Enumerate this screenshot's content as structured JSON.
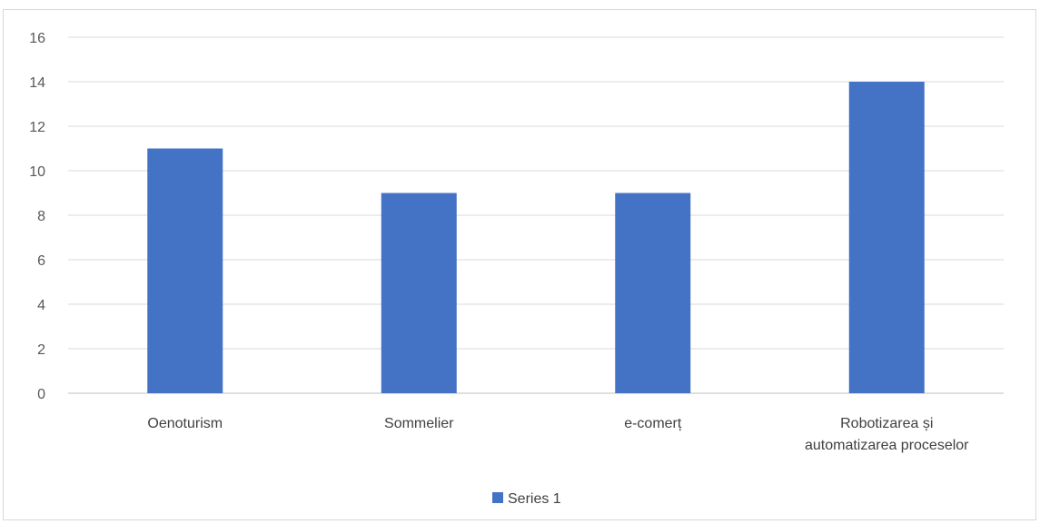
{
  "chart_data": {
    "type": "bar",
    "categories": [
      "Oenoturism",
      "Sommelier",
      "e-comerț",
      "Robotizarea și automatizarea proceselor"
    ],
    "category_lines": [
      [
        "Oenoturism"
      ],
      [
        "Sommelier"
      ],
      [
        "e-comerț"
      ],
      [
        "Robotizarea și",
        "automatizarea proceselor"
      ]
    ],
    "series": [
      {
        "name": "Series 1",
        "values": [
          11,
          9,
          9,
          14
        ],
        "color": "#4472c4"
      }
    ],
    "yticks": [
      "0",
      "2",
      "4",
      "6",
      "8",
      "10",
      "12",
      "14",
      "16"
    ],
    "ylim": [
      0,
      16
    ],
    "grid": true,
    "legend_position": "bottom"
  }
}
